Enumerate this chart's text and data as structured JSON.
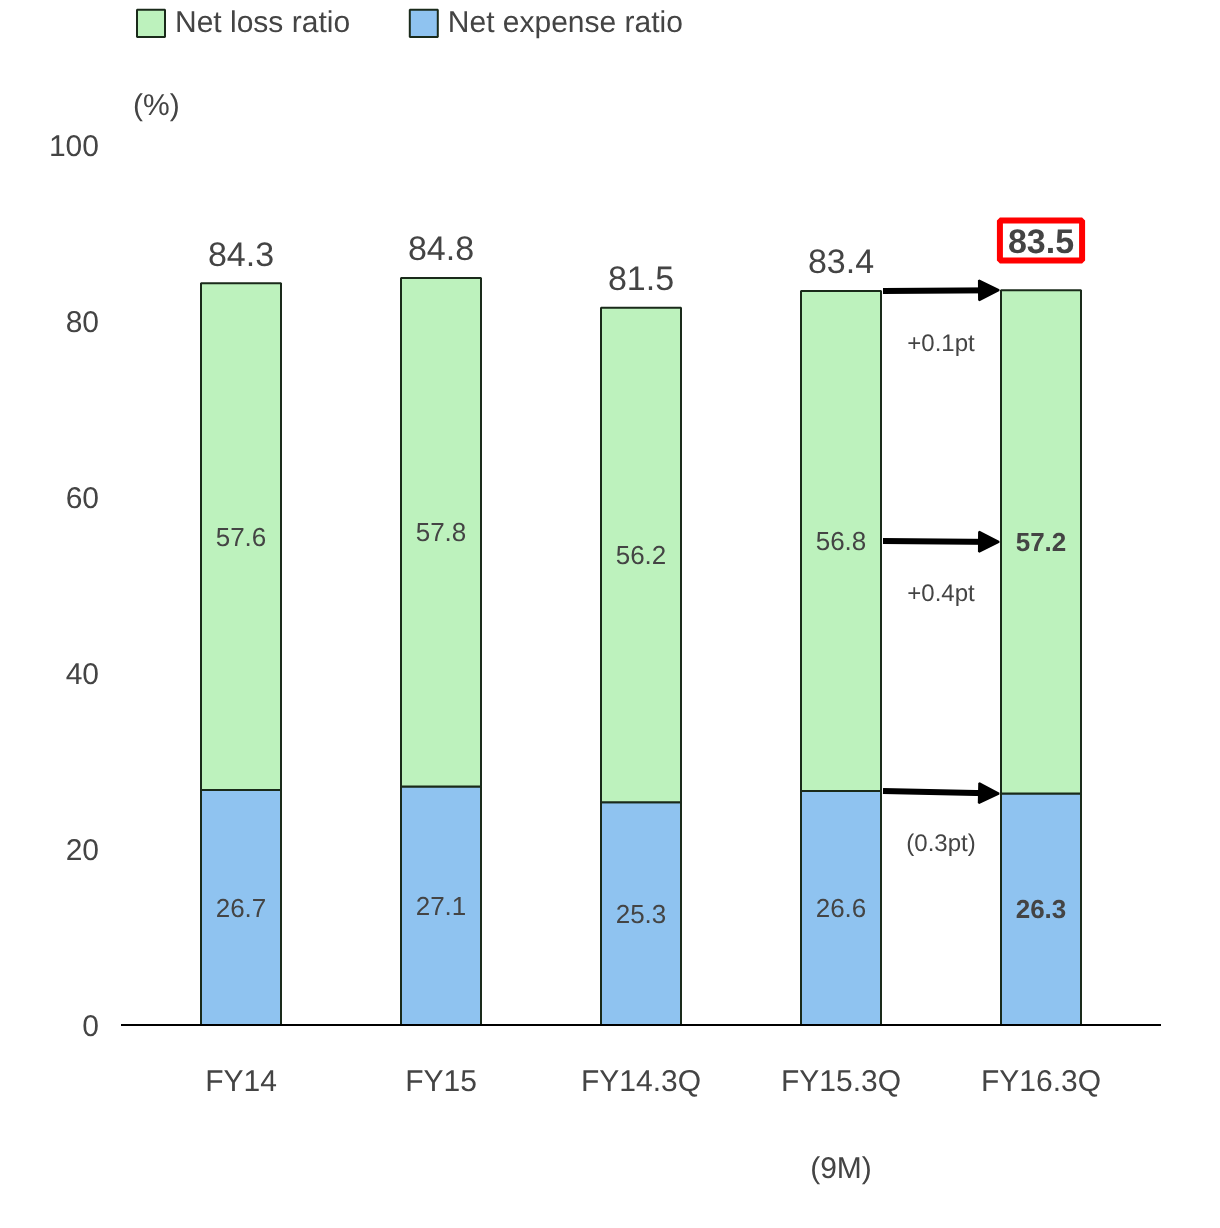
{
  "chart_data": {
    "type": "bar",
    "stacked": true,
    "categories": [
      "FY14",
      "FY15",
      "FY14.3Q",
      "FY15.3Q",
      "FY16.3Q"
    ],
    "series": [
      {
        "name": "Net expense ratio",
        "color": "#8fc3f0",
        "values": [
          26.7,
          27.1,
          25.3,
          26.6,
          26.3
        ]
      },
      {
        "name": "Net loss ratio",
        "color": "#bdf2bd",
        "values": [
          57.6,
          57.8,
          56.2,
          56.8,
          57.2
        ]
      }
    ],
    "totals": [
      "84.3",
      "84.8",
      "81.5",
      "83.4",
      "83.5"
    ],
    "data_labels": true,
    "ylabel": "(%)",
    "ylim": [
      0,
      100
    ],
    "yticks": [
      0,
      20,
      40,
      60,
      80,
      100
    ],
    "grid": false,
    "legend": "top left",
    "annotations": [
      "+0.1pt",
      "+0.4pt",
      "(0.3pt)",
      "(9M)"
    ]
  }
}
